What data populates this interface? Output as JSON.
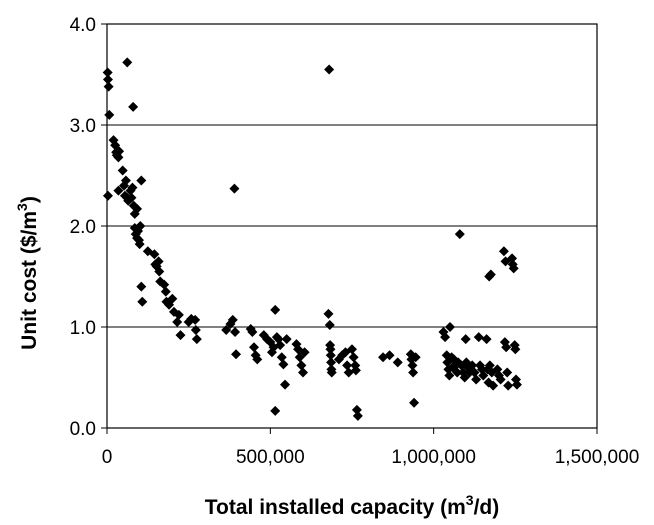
{
  "chart_data": {
    "type": "scatter",
    "title": "",
    "xlabel": {
      "prefix": "Total installed capacity (m",
      "sup": "3",
      "suffix": "/d)"
    },
    "ylabel": {
      "prefix": "Unit cost ($/m",
      "sup": "3",
      "suffix": ")"
    },
    "xlim": [
      0,
      1500000
    ],
    "ylim": [
      0,
      4.0
    ],
    "xticks": [
      0,
      500000,
      1000000,
      1500000
    ],
    "xtick_labels": [
      "0",
      "500,000",
      "1,000,000",
      "1,500,000"
    ],
    "yticks": [
      0,
      1.0,
      2.0,
      3.0,
      4.0
    ],
    "ytick_labels": [
      "0.0",
      "1.0",
      "2.0",
      "3.0",
      "4.0"
    ],
    "grid": "horizontal",
    "marker": "diamond",
    "marker_color": "#000000",
    "series": [
      {
        "points": [
          [
            2000,
            3.52
          ],
          [
            3000,
            3.45
          ],
          [
            5000,
            3.38
          ],
          [
            7000,
            3.1
          ],
          [
            3000,
            2.3
          ],
          [
            62000,
            3.62
          ],
          [
            80000,
            3.18
          ],
          [
            20000,
            2.85
          ],
          [
            25000,
            2.8
          ],
          [
            28000,
            2.73
          ],
          [
            30000,
            2.7
          ],
          [
            35000,
            2.68
          ],
          [
            37000,
            2.74
          ],
          [
            35000,
            2.35
          ],
          [
            48000,
            2.55
          ],
          [
            52000,
            2.4
          ],
          [
            58000,
            2.45
          ],
          [
            55000,
            2.3
          ],
          [
            62000,
            2.28
          ],
          [
            65000,
            2.25
          ],
          [
            72000,
            2.35
          ],
          [
            78000,
            2.38
          ],
          [
            75000,
            2.28
          ],
          [
            82000,
            2.2
          ],
          [
            85000,
            2.12
          ],
          [
            92000,
            2.17
          ],
          [
            105000,
            2.45
          ],
          [
            85000,
            1.98
          ],
          [
            88000,
            1.92
          ],
          [
            92000,
            1.88
          ],
          [
            95000,
            1.95
          ],
          [
            98000,
            1.86
          ],
          [
            100000,
            1.82
          ],
          [
            102000,
            2.0
          ],
          [
            105000,
            1.4
          ],
          [
            108000,
            1.25
          ],
          [
            125000,
            1.75
          ],
          [
            145000,
            1.72
          ],
          [
            148000,
            1.62
          ],
          [
            152000,
            1.6
          ],
          [
            158000,
            1.65
          ],
          [
            160000,
            1.55
          ],
          [
            163000,
            1.45
          ],
          [
            175000,
            1.42
          ],
          [
            180000,
            1.35
          ],
          [
            182000,
            1.25
          ],
          [
            190000,
            1.22
          ],
          [
            200000,
            1.28
          ],
          [
            205000,
            1.15
          ],
          [
            215000,
            1.05
          ],
          [
            220000,
            1.12
          ],
          [
            225000,
            0.92
          ],
          [
            250000,
            1.05
          ],
          [
            258000,
            1.08
          ],
          [
            270000,
            1.07
          ],
          [
            272000,
            0.97
          ],
          [
            275000,
            0.88
          ],
          [
            365000,
            0.97
          ],
          [
            378000,
            1.03
          ],
          [
            385000,
            1.07
          ],
          [
            390000,
            2.37
          ],
          [
            392000,
            0.95
          ],
          [
            395000,
            0.73
          ],
          [
            440000,
            0.98
          ],
          [
            445000,
            0.95
          ],
          [
            450000,
            0.8
          ],
          [
            455000,
            0.72
          ],
          [
            460000,
            0.68
          ],
          [
            480000,
            0.92
          ],
          [
            490000,
            0.88
          ],
          [
            500000,
            0.85
          ],
          [
            505000,
            0.75
          ],
          [
            510000,
            0.8
          ],
          [
            515000,
            1.17
          ],
          [
            520000,
            0.9
          ],
          [
            515000,
            0.17
          ],
          [
            525000,
            0.88
          ],
          [
            530000,
            0.82
          ],
          [
            535000,
            0.7
          ],
          [
            540000,
            0.63
          ],
          [
            545000,
            0.43
          ],
          [
            550000,
            0.88
          ],
          [
            580000,
            0.83
          ],
          [
            585000,
            0.78
          ],
          [
            590000,
            0.7
          ],
          [
            595000,
            0.62
          ],
          [
            600000,
            0.55
          ],
          [
            605000,
            0.75
          ],
          [
            680000,
            3.55
          ],
          [
            678000,
            1.13
          ],
          [
            682000,
            1.02
          ],
          [
            683000,
            0.82
          ],
          [
            684000,
            0.78
          ],
          [
            685000,
            0.72
          ],
          [
            686000,
            0.65
          ],
          [
            687000,
            0.58
          ],
          [
            688000,
            0.55
          ],
          [
            710000,
            0.68
          ],
          [
            720000,
            0.72
          ],
          [
            730000,
            0.75
          ],
          [
            735000,
            0.62
          ],
          [
            740000,
            0.55
          ],
          [
            750000,
            0.78
          ],
          [
            755000,
            0.7
          ],
          [
            760000,
            0.62
          ],
          [
            762000,
            0.57
          ],
          [
            765000,
            0.18
          ],
          [
            768000,
            0.12
          ],
          [
            845000,
            0.7
          ],
          [
            865000,
            0.72
          ],
          [
            890000,
            0.65
          ],
          [
            930000,
            0.73
          ],
          [
            932000,
            0.68
          ],
          [
            935000,
            0.62
          ],
          [
            937000,
            0.55
          ],
          [
            940000,
            0.25
          ],
          [
            945000,
            0.7
          ],
          [
            1030000,
            0.95
          ],
          [
            1035000,
            0.9
          ],
          [
            1040000,
            0.72
          ],
          [
            1042000,
            0.65
          ],
          [
            1045000,
            0.58
          ],
          [
            1048000,
            0.52
          ],
          [
            1050000,
            1.0
          ],
          [
            1055000,
            0.7
          ],
          [
            1058000,
            0.6
          ],
          [
            1062000,
            0.68
          ],
          [
            1068000,
            0.62
          ],
          [
            1072000,
            0.55
          ],
          [
            1075000,
            0.65
          ],
          [
            1080000,
            1.92
          ],
          [
            1085000,
            0.62
          ],
          [
            1090000,
            0.55
          ],
          [
            1095000,
            0.5
          ],
          [
            1098000,
            0.88
          ],
          [
            1100000,
            0.65
          ],
          [
            1105000,
            0.6
          ],
          [
            1110000,
            0.55
          ],
          [
            1118000,
            0.62
          ],
          [
            1125000,
            0.55
          ],
          [
            1130000,
            0.48
          ],
          [
            1138000,
            0.9
          ],
          [
            1142000,
            0.62
          ],
          [
            1148000,
            0.58
          ],
          [
            1152000,
            0.52
          ],
          [
            1162000,
            0.88
          ],
          [
            1165000,
            0.58
          ],
          [
            1168000,
            0.45
          ],
          [
            1170000,
            1.5
          ],
          [
            1172000,
            0.62
          ],
          [
            1175000,
            1.52
          ],
          [
            1178000,
            0.55
          ],
          [
            1182000,
            0.42
          ],
          [
            1195000,
            0.58
          ],
          [
            1200000,
            0.52
          ],
          [
            1205000,
            0.48
          ],
          [
            1215000,
            1.75
          ],
          [
            1218000,
            0.85
          ],
          [
            1220000,
            1.65
          ],
          [
            1222000,
            0.8
          ],
          [
            1225000,
            0.55
          ],
          [
            1228000,
            0.42
          ],
          [
            1240000,
            1.68
          ],
          [
            1242000,
            1.62
          ],
          [
            1245000,
            1.58
          ],
          [
            1248000,
            0.82
          ],
          [
            1250000,
            0.78
          ],
          [
            1252000,
            0.48
          ],
          [
            1255000,
            0.43
          ]
        ]
      }
    ]
  }
}
